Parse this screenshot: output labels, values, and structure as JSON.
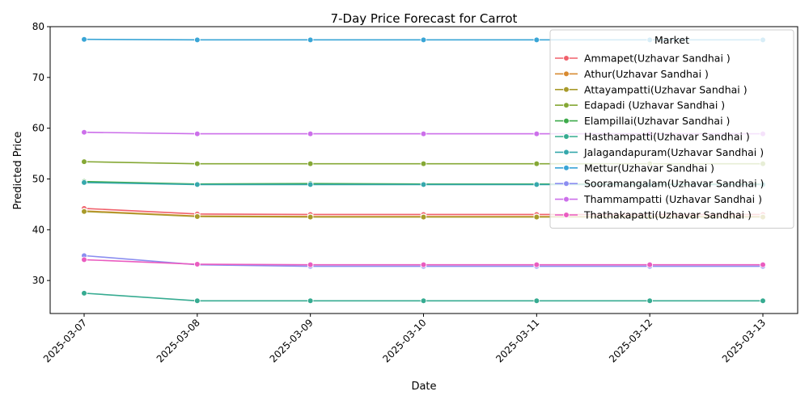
{
  "chart_data": {
    "type": "line",
    "title": "7-Day Price Forecast for Carrot",
    "xlabel": "Date",
    "ylabel": "Predicted Price",
    "x": [
      "2025-03-07",
      "2025-03-08",
      "2025-03-09",
      "2025-03-10",
      "2025-03-11",
      "2025-03-12",
      "2025-03-13"
    ],
    "ylim": [
      23.5,
      80
    ],
    "yticks": [
      30,
      40,
      50,
      60,
      70,
      80
    ],
    "grid": false,
    "legend": {
      "title": "Market",
      "position": "top-right"
    },
    "series": [
      {
        "name": "Ammapet(Uzhavar Sandhai )",
        "color": "#f0606b",
        "values": [
          44.2,
          43.1,
          43.0,
          43.0,
          43.0,
          43.0,
          43.0
        ]
      },
      {
        "name": "Athur(Uzhavar Sandhai )",
        "color": "#d88a30",
        "values": [
          43.7,
          42.7,
          42.6,
          42.6,
          42.6,
          42.6,
          42.6
        ]
      },
      {
        "name": "Attayampatti(Uzhavar Sandhai )",
        "color": "#a89a2a",
        "values": [
          43.6,
          42.6,
          42.5,
          42.5,
          42.5,
          42.5,
          42.5
        ]
      },
      {
        "name": "Edapadi (Uzhavar Sandhai )",
        "color": "#85a835",
        "values": [
          53.4,
          53.0,
          53.0,
          53.0,
          53.0,
          53.0,
          53.0
        ]
      },
      {
        "name": "Elampillai(Uzhavar Sandhai )",
        "color": "#3daa4a",
        "values": [
          49.5,
          49.0,
          49.1,
          49.0,
          49.0,
          49.0,
          49.0
        ]
      },
      {
        "name": "Hasthampatti(Uzhavar Sandhai )",
        "color": "#36ab91",
        "values": [
          27.5,
          26.0,
          26.0,
          26.0,
          26.0,
          26.0,
          26.0
        ]
      },
      {
        "name": "Jalagandapuram(Uzhavar Sandhai )",
        "color": "#36a8ac",
        "values": [
          49.3,
          48.9,
          48.9,
          48.9,
          48.9,
          48.9,
          48.9
        ]
      },
      {
        "name": "Mettur(Uzhavar Sandhai )",
        "color": "#39a5d6",
        "values": [
          77.5,
          77.4,
          77.4,
          77.4,
          77.4,
          77.4,
          77.4
        ]
      },
      {
        "name": "Sooramangalam(Uzhavar Sandhai )",
        "color": "#8b8ef0",
        "values": [
          34.9,
          33.1,
          32.8,
          32.8,
          32.8,
          32.8,
          32.8
        ]
      },
      {
        "name": "Thammampatti (Uzhavar Sandhai )",
        "color": "#cc6fea",
        "values": [
          59.2,
          58.9,
          58.9,
          58.9,
          58.9,
          58.9,
          58.9
        ]
      },
      {
        "name": "Thathakapatti(Uzhavar Sandhai )",
        "color": "#ea5cc0",
        "values": [
          34.1,
          33.2,
          33.1,
          33.1,
          33.1,
          33.1,
          33.1
        ]
      }
    ]
  }
}
